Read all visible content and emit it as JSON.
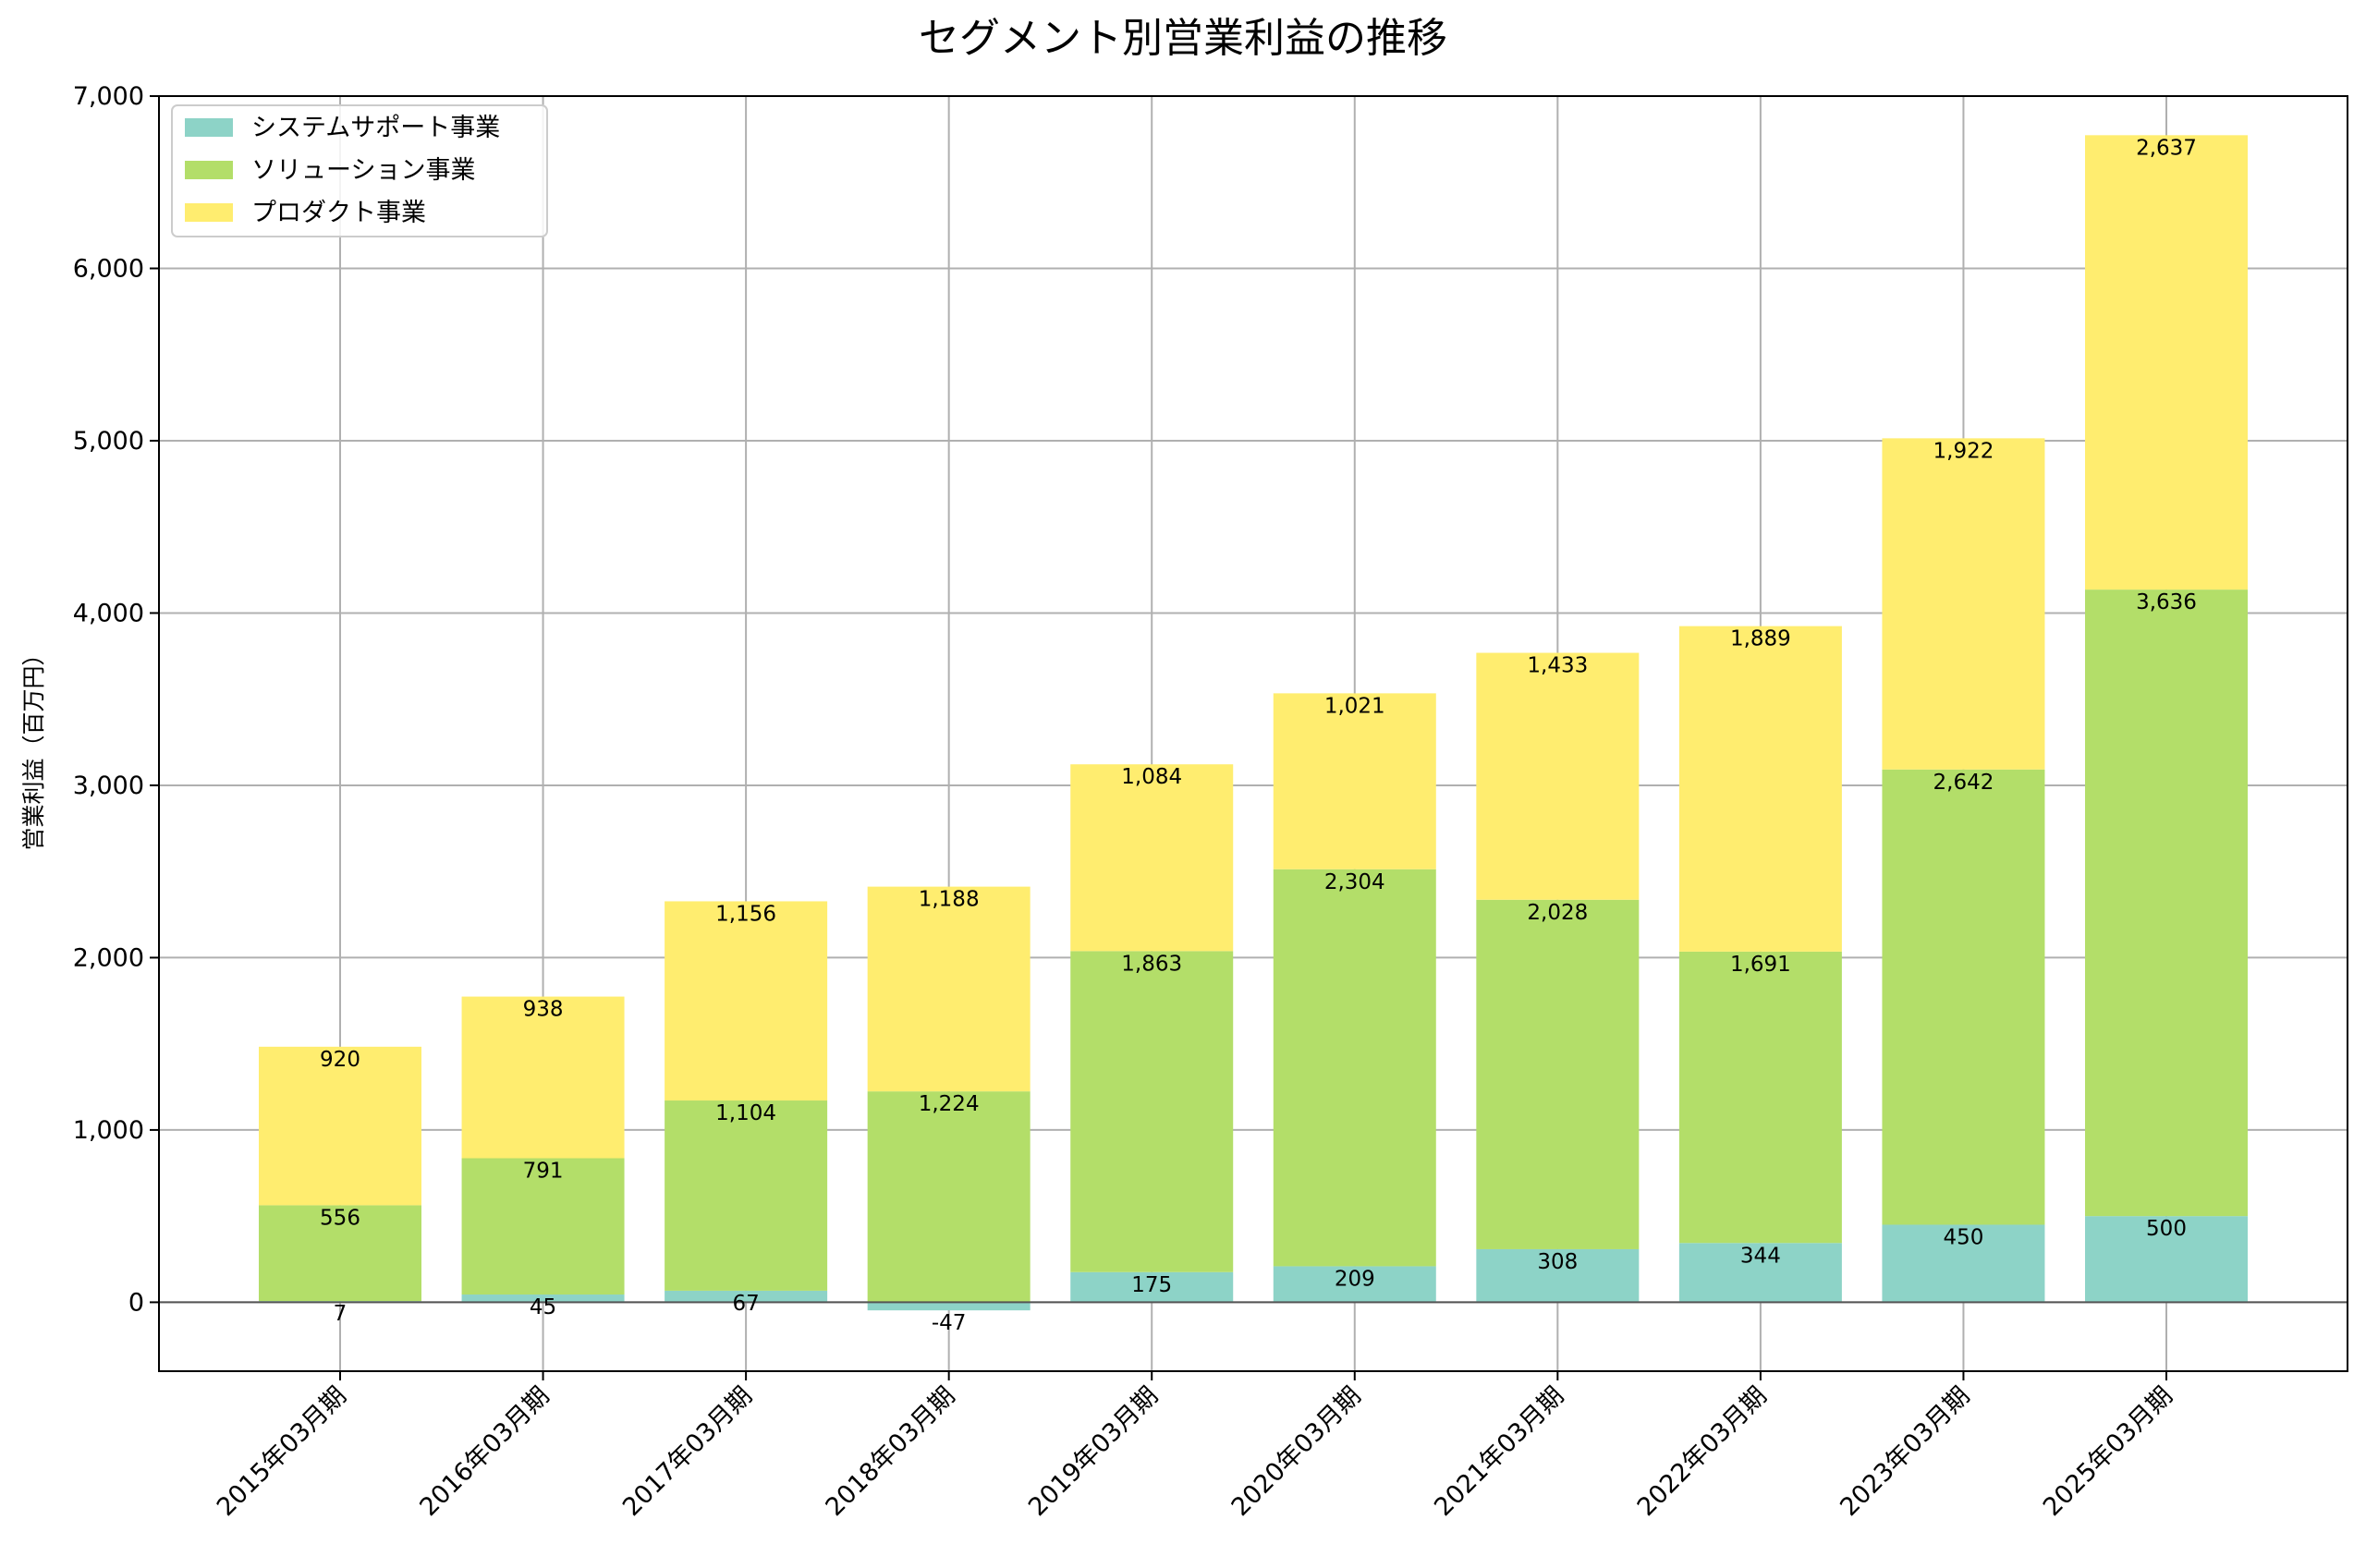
{
  "chart_data": {
    "type": "bar",
    "stacked": true,
    "title": "セグメント別営業利益の推移",
    "xlabel": "",
    "ylabel": "営業利益（百万円）",
    "ylim": [
      -400,
      7000
    ],
    "yticks": [
      0,
      1000,
      2000,
      3000,
      4000,
      5000,
      6000,
      7000
    ],
    "ytick_labels": [
      "0",
      "1,000",
      "2,000",
      "3,000",
      "4,000",
      "5,000",
      "6,000",
      "7,000"
    ],
    "grid": true,
    "legend_position": "top-left",
    "categories": [
      "2015年03月期",
      "2016年03月期",
      "2017年03月期",
      "2018年03月期",
      "2019年03月期",
      "2020年03月期",
      "2021年03月期",
      "2022年03月期",
      "2023年03月期",
      "2025年03月期"
    ],
    "series": [
      {
        "name": "システムサポート事業",
        "color": "#8dd3c7",
        "values": [
          7,
          45,
          67,
          -47,
          175,
          209,
          308,
          344,
          450,
          500
        ],
        "labels": [
          "7",
          "45",
          "67",
          "-47",
          "175",
          "209",
          "308",
          "344",
          "450",
          "500"
        ]
      },
      {
        "name": "ソリューション事業",
        "color": "#b3de69",
        "values": [
          556,
          791,
          1104,
          1224,
          1863,
          2304,
          2028,
          1691,
          2642,
          3636
        ],
        "labels": [
          "556",
          "791",
          "1,104",
          "1,224",
          "1,863",
          "2,304",
          "2,028",
          "1,691",
          "2,642",
          "3,636"
        ]
      },
      {
        "name": "プロダクト事業",
        "color": "#ffed6f",
        "values": [
          920,
          938,
          1156,
          1188,
          1084,
          1021,
          1433,
          1889,
          1922,
          2637
        ],
        "labels": [
          "920",
          "938",
          "1,156",
          "1,188",
          "1,084",
          "1,021",
          "1,433",
          "1,889",
          "1,922",
          "2,637"
        ]
      }
    ]
  },
  "colors": {
    "grid": "#b0b0b0",
    "axis": "#000000",
    "zero_line": "#555555",
    "legend_border": "#cccccc"
  }
}
